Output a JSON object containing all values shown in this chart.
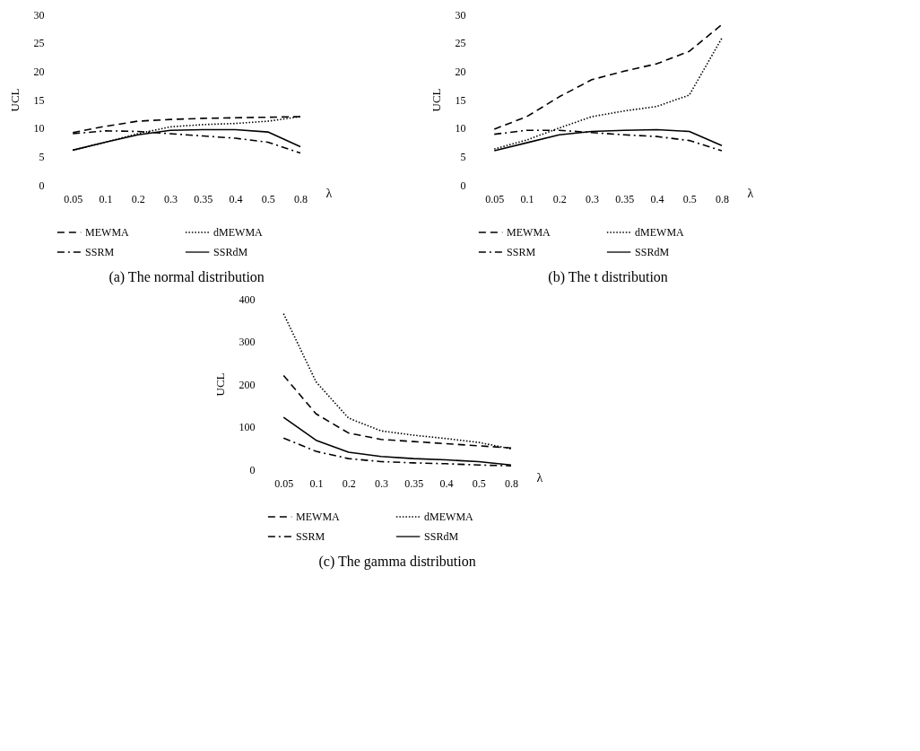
{
  "chart_data": [
    {
      "type": "line",
      "title": "(a) The normal distribution",
      "xlabel": "λ",
      "ylabel": "UCL",
      "categories": [
        "0.05",
        "0.1",
        "0.2",
        "0.3",
        "0.35",
        "0.4",
        "0.5",
        "0.8"
      ],
      "ylim": [
        0,
        30
      ],
      "yticks": [
        0,
        5,
        10,
        15,
        20,
        25,
        30
      ],
      "grid": false,
      "legend": "bottom",
      "series": [
        {
          "name": "MEWMA",
          "color": "#000000",
          "line_style": "dashed",
          "values": [
            9.2,
            10.3,
            11.2,
            11.5,
            11.7,
            11.8,
            11.9,
            12.0
          ]
        },
        {
          "name": "dMEWMA",
          "color": "#000000",
          "line_style": "dotted",
          "values": [
            6.1,
            7.5,
            9.0,
            10.2,
            10.6,
            10.8,
            11.2,
            12.0
          ]
        },
        {
          "name": "SSRM",
          "color": "#000000",
          "line_style": "dashdot",
          "values": [
            9.0,
            9.5,
            9.4,
            9.0,
            8.6,
            8.2,
            7.5,
            5.6
          ]
        },
        {
          "name": "SSRdM",
          "color": "#000000",
          "line_style": "solid",
          "values": [
            6.1,
            7.5,
            8.8,
            9.6,
            9.7,
            9.7,
            9.3,
            6.7
          ]
        }
      ]
    },
    {
      "type": "line",
      "title": "(b) The t distribution",
      "xlabel": "λ",
      "ylabel": "UCL",
      "categories": [
        "0.05",
        "0.1",
        "0.2",
        "0.3",
        "0.35",
        "0.4",
        "0.5",
        "0.8"
      ],
      "ylim": [
        0,
        30
      ],
      "yticks": [
        0,
        5,
        10,
        15,
        20,
        25,
        30
      ],
      "grid": false,
      "legend": "bottom",
      "series": [
        {
          "name": "MEWMA",
          "color": "#000000",
          "line_style": "dashed",
          "values": [
            9.8,
            12.0,
            15.5,
            18.5,
            20.0,
            21.3,
            23.5,
            28.2
          ]
        },
        {
          "name": "dMEWMA",
          "color": "#000000",
          "line_style": "dotted",
          "values": [
            6.3,
            7.9,
            10.0,
            12.0,
            13.0,
            13.8,
            15.8,
            25.8
          ]
        },
        {
          "name": "SSRM",
          "color": "#000000",
          "line_style": "dashdot",
          "values": [
            8.9,
            9.6,
            9.6,
            9.2,
            8.8,
            8.5,
            7.8,
            6.0
          ]
        },
        {
          "name": "SSRdM",
          "color": "#000000",
          "line_style": "solid",
          "values": [
            6.0,
            7.4,
            8.8,
            9.4,
            9.6,
            9.7,
            9.4,
            6.9
          ]
        }
      ]
    },
    {
      "type": "line",
      "title": "(c) The gamma distribution",
      "xlabel": "λ",
      "ylabel": "UCL",
      "categories": [
        "0.05",
        "0.1",
        "0.2",
        "0.3",
        "0.35",
        "0.4",
        "0.5",
        "0.8"
      ],
      "ylim": [
        0,
        400
      ],
      "yticks": [
        0,
        100,
        200,
        300,
        400
      ],
      "grid": false,
      "legend": "bottom",
      "series": [
        {
          "name": "MEWMA",
          "color": "#000000",
          "line_style": "dashed",
          "values": [
            220,
            130,
            85,
            70,
            65,
            60,
            55,
            50
          ]
        },
        {
          "name": "dMEWMA",
          "color": "#000000",
          "line_style": "dotted",
          "values": [
            365,
            205,
            120,
            90,
            80,
            72,
            63,
            48
          ]
        },
        {
          "name": "SSRM",
          "color": "#000000",
          "line_style": "dashdot",
          "values": [
            73,
            42,
            25,
            18,
            15,
            13,
            10,
            8
          ]
        },
        {
          "name": "SSRdM",
          "color": "#000000",
          "line_style": "solid",
          "values": [
            122,
            68,
            40,
            30,
            25,
            22,
            18,
            10
          ]
        }
      ]
    }
  ]
}
